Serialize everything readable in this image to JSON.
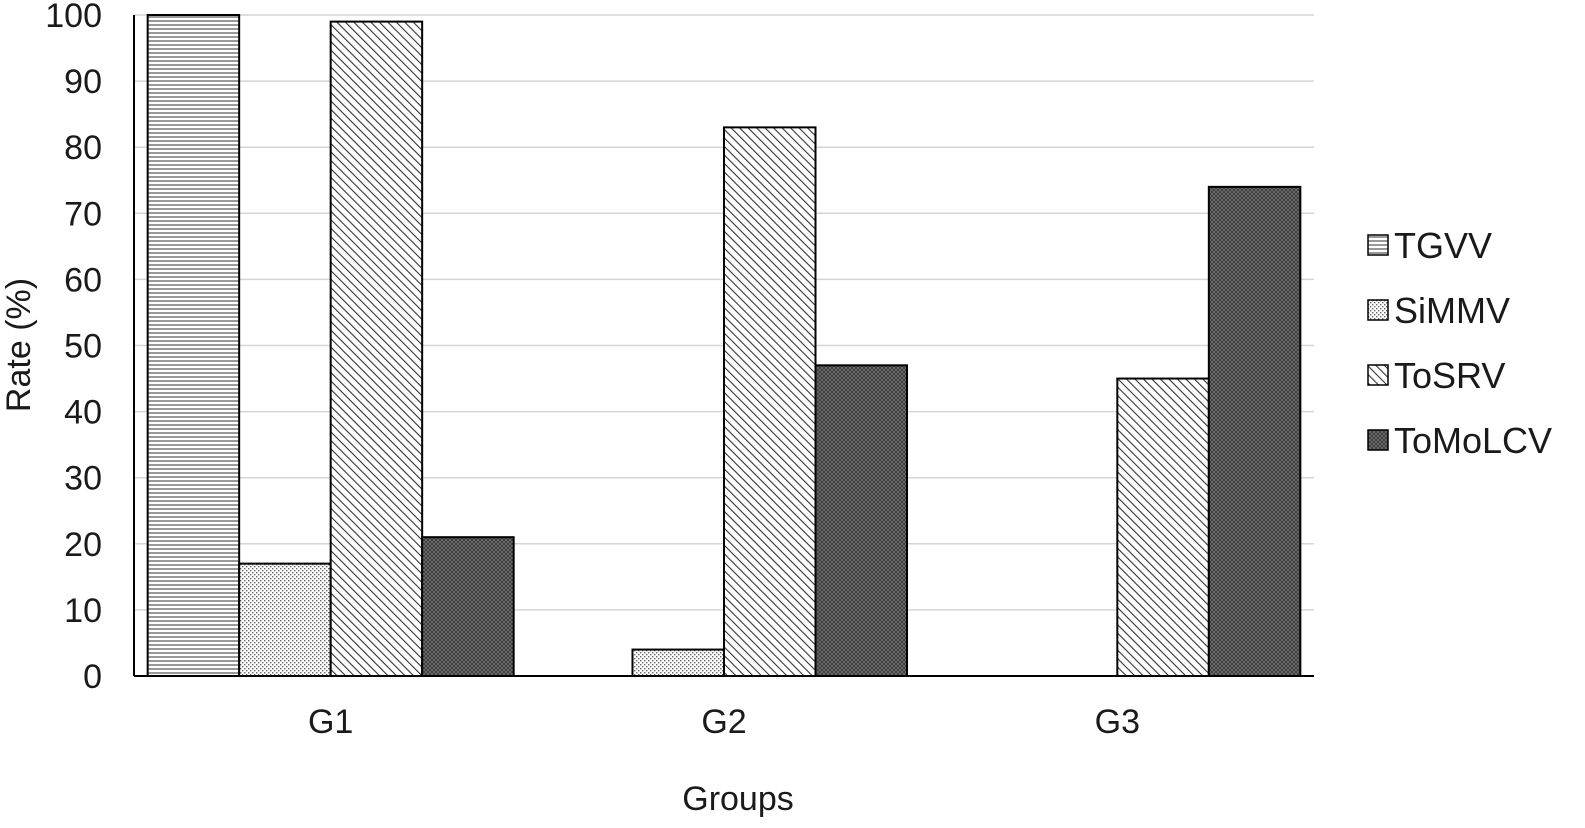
{
  "chart_data": {
    "type": "bar",
    "title": "",
    "xlabel": "Groups",
    "ylabel": "Rate (%)",
    "categories": [
      "G1",
      "G2",
      "G3"
    ],
    "ylim": [
      0,
      100
    ],
    "yticks": [
      0,
      10,
      20,
      30,
      40,
      50,
      60,
      70,
      80,
      90,
      100
    ],
    "grid": "horizontal",
    "legend_position": "right",
    "series": [
      {
        "name": "TGVV",
        "values": [
          100,
          0,
          0
        ],
        "pattern": "horizontal-lines"
      },
      {
        "name": "SiMMV",
        "values": [
          17,
          4,
          0
        ],
        "pattern": "dots"
      },
      {
        "name": "ToSRV",
        "values": [
          99,
          83,
          45
        ],
        "pattern": "diagonal-lines"
      },
      {
        "name": "ToMoLCV",
        "values": [
          21,
          47,
          74
        ],
        "pattern": "dark-crosshatch"
      }
    ],
    "colors": {
      "bar_outline": "#000000",
      "gridline": "#d4d4d4",
      "axis": "#000000"
    }
  }
}
